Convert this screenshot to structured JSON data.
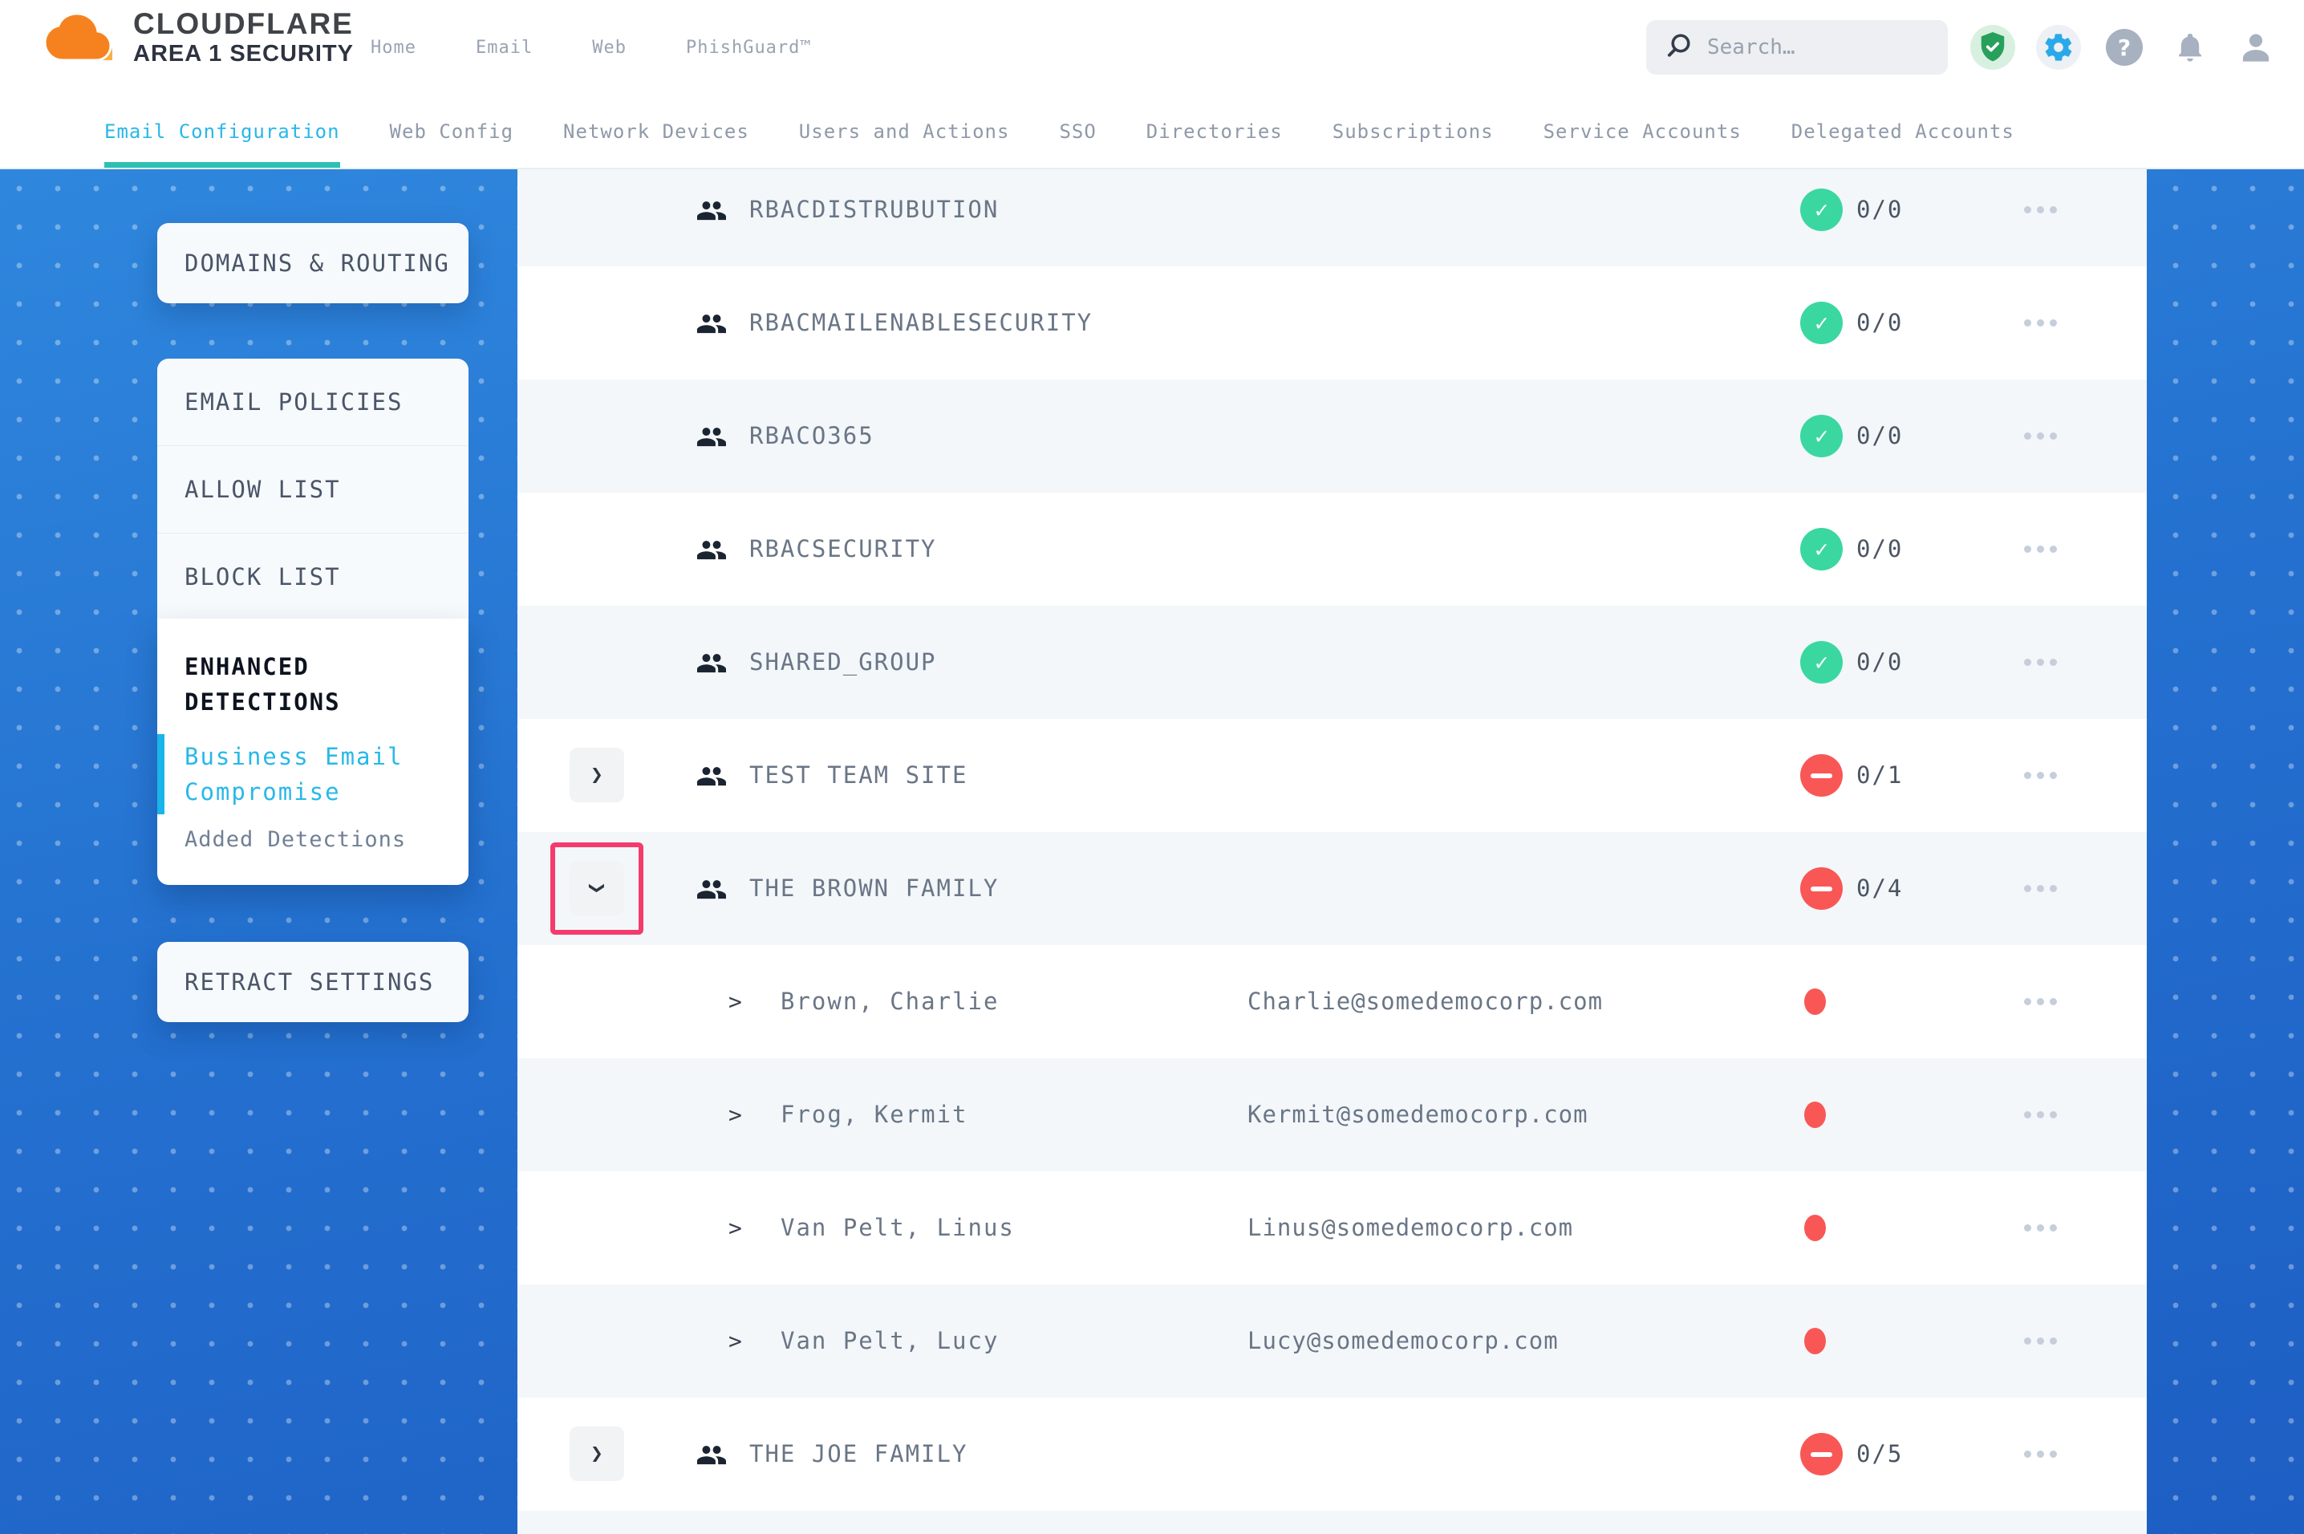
{
  "header": {
    "brand_title": "CLOUDFLARE",
    "brand_subtitle": "AREA 1 SECURITY",
    "nav": [
      {
        "label": "Home"
      },
      {
        "label": "Email"
      },
      {
        "label": "Web"
      },
      {
        "label": "PhishGuard™"
      }
    ],
    "search": {
      "placeholder": "Search…"
    },
    "icons": [
      "shield-check-icon",
      "gear-icon",
      "help-icon",
      "bell-icon",
      "user-icon"
    ]
  },
  "tabs": [
    {
      "label": "Email Configuration",
      "active": true
    },
    {
      "label": "Web Config",
      "active": false
    },
    {
      "label": "Network Devices",
      "active": false
    },
    {
      "label": "Users and Actions",
      "active": false
    },
    {
      "label": "SSO",
      "active": false
    },
    {
      "label": "Directories",
      "active": false
    },
    {
      "label": "Subscriptions",
      "active": false
    },
    {
      "label": "Service Accounts",
      "active": false
    },
    {
      "label": "Delegated Accounts",
      "active": false
    }
  ],
  "sidebar": {
    "domains_routing": "DOMAINS & ROUTING",
    "policies": [
      {
        "label": "EMAIL POLICIES"
      },
      {
        "label": "ALLOW LIST"
      },
      {
        "label": "BLOCK LIST"
      }
    ],
    "enhanced": {
      "title": "ENHANCED DETECTIONS",
      "active_item": "Business Email Compromise",
      "secondary_item": "Added Detections"
    },
    "retract_settings": "RETRACT SETTINGS"
  },
  "table": {
    "rows": [
      {
        "kind": "group",
        "name": "RBACDISTRUBUTION",
        "status": "ok",
        "count": "0/0",
        "expandable": false
      },
      {
        "kind": "group",
        "name": "RBACMAILENABLESECURITY",
        "status": "ok",
        "count": "0/0",
        "expandable": false
      },
      {
        "kind": "group",
        "name": "RBACO365",
        "status": "ok",
        "count": "0/0",
        "expandable": false
      },
      {
        "kind": "group",
        "name": "RBACSECURITY",
        "status": "ok",
        "count": "0/0",
        "expandable": false
      },
      {
        "kind": "group",
        "name": "SHARED_GROUP",
        "status": "ok",
        "count": "0/0",
        "expandable": false
      },
      {
        "kind": "group",
        "name": "TEST TEAM SITE",
        "status": "blocked",
        "count": "0/1",
        "expandable": true,
        "expanded": false
      },
      {
        "kind": "group",
        "name": "THE BROWN FAMILY",
        "status": "blocked",
        "count": "0/4",
        "expandable": true,
        "expanded": true,
        "highlighted": true
      },
      {
        "kind": "member",
        "name": "Brown, Charlie",
        "email": "Charlie@somedemocorp.com",
        "status": "alert"
      },
      {
        "kind": "member",
        "name": "Frog, Kermit",
        "email": "Kermit@somedemocorp.com",
        "status": "alert"
      },
      {
        "kind": "member",
        "name": "Van Pelt, Linus",
        "email": "Linus@somedemocorp.com",
        "status": "alert"
      },
      {
        "kind": "member",
        "name": "Van Pelt, Lucy",
        "email": "Lucy@somedemocorp.com",
        "status": "alert"
      },
      {
        "kind": "group",
        "name": "THE JOE FAMILY",
        "status": "blocked",
        "count": "0/5",
        "expandable": true,
        "expanded": false
      }
    ]
  },
  "colors": {
    "accent_cyan": "#28b8e8",
    "accent_teal": "#2bc1b2",
    "status_ok": "#3bd7a1",
    "status_blocked": "#f95756",
    "highlight_pink": "#f43b6c",
    "blue_top": "#2f87dd",
    "blue_bottom": "#1d5ec3"
  }
}
